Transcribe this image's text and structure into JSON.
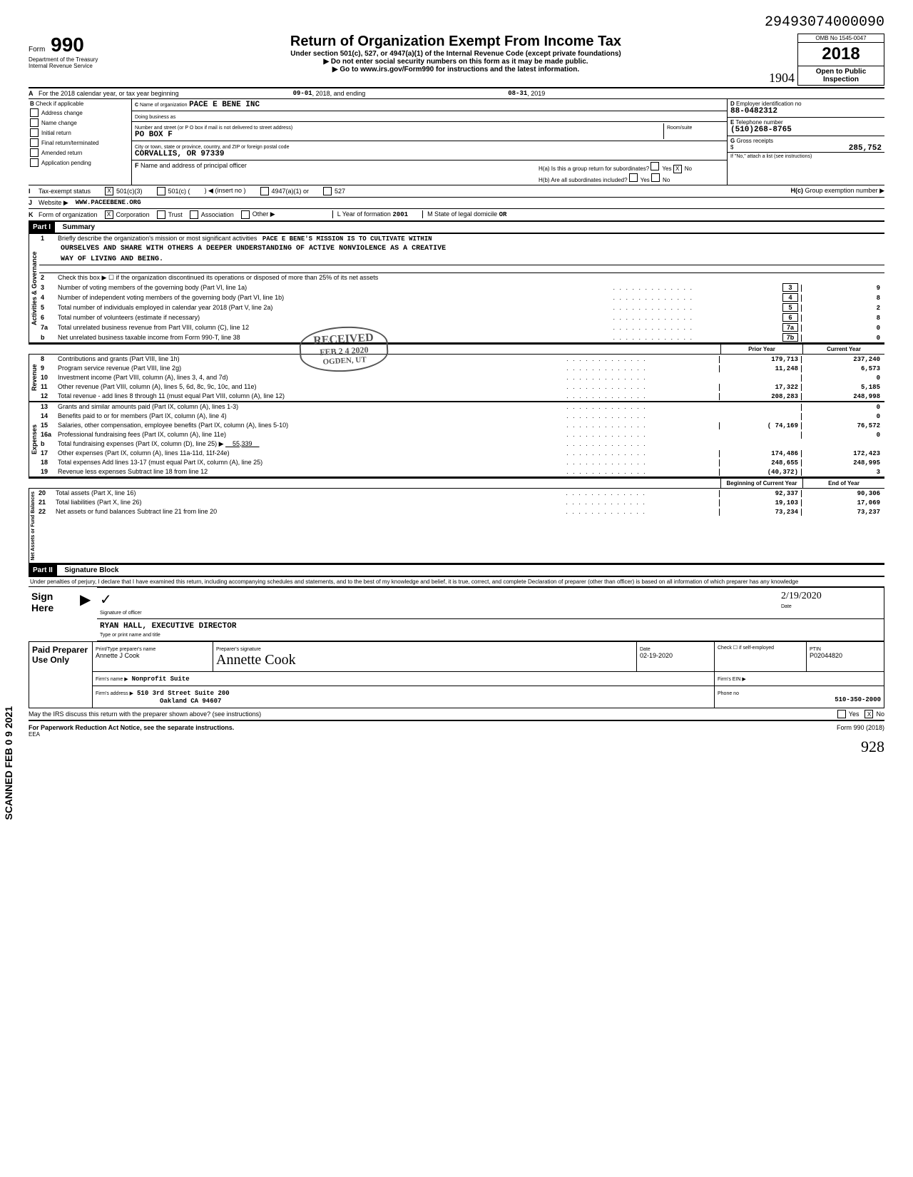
{
  "top_right_code": "29493074000090",
  "form_number": "990",
  "form_label": "Form",
  "omb": "OMB No 1545-0047",
  "year": "2018",
  "open_public": "Open to Public Inspection",
  "title": "Return of Organization Exempt From Income Tax",
  "subtitle1": "Under section 501(c), 527, or 4947(a)(1) of the Internal Revenue Code (except private foundations)",
  "subtitle2": "▶ Do not enter social security numbers on this form as it may be made public.",
  "subtitle3": "▶ Go to www.irs.gov/Form990 for instructions and the latest information.",
  "dept1": "Department of the Treasury",
  "dept2": "Internal Revenue Service",
  "initials": "1904",
  "row_a": {
    "label": "A",
    "text": "For the 2018 calendar year, or tax year beginning",
    "begin": "09-01",
    "mid": ", 2018, and ending",
    "end": "08-31",
    "end2": ", 2019"
  },
  "section_b": {
    "b_label": "B",
    "check_label": "Check if applicable",
    "checks": [
      "Address change",
      "Name change",
      "Initial return",
      "Final return/terminated",
      "Amended return",
      "Application pending"
    ],
    "c_label": "C",
    "name_label": "Name of organization",
    "name": "PACE E BENE INC",
    "dba_label": "Doing business as",
    "street_label": "Number and street (or P O box if mail is not delivered to street address)",
    "street": "PO BOX F",
    "room_label": "Room/suite",
    "city_label": "City or town, state or province, country, and ZIP or foreign postal code",
    "city": "CORVALLIS, OR 97339",
    "f_label": "F",
    "f_text": "Name and address of principal officer",
    "d_label": "D",
    "d_text": "Employer identification no",
    "ein": "88-0482312",
    "e_label": "E",
    "e_text": "Telephone number",
    "phone": "(510)268-8765",
    "g_label": "G",
    "g_text": "Gross receipts",
    "gross": "285,752",
    "h1a": "H(a) Is this a group return for subordinates?",
    "h1b": "H(b) Are all subordinates included?",
    "h_yes": "Yes",
    "h_no": "No",
    "h_note": "If \"No,\" attach a list (see instructions)",
    "hc": "H(c)",
    "hc_text": "Group exemption number ▶"
  },
  "row_i": {
    "lbl": "I",
    "text": "Tax-exempt status",
    "opt1": "501(c)(3)",
    "opt2": "501(c) (",
    "insert": ") ◀ (insert no )",
    "opt3": "4947(a)(1) or",
    "opt4": "527"
  },
  "row_j": {
    "lbl": "J",
    "text": "Website ▶",
    "val": "WWW.PACEEBENE.ORG"
  },
  "row_k": {
    "lbl": "K",
    "text": "Form of organization",
    "opts": [
      "Corporation",
      "Trust",
      "Association",
      "Other ▶"
    ],
    "l_text": "L Year of formation",
    "l_val": "2001",
    "m_text": "M State of legal domicile",
    "m_val": "OR"
  },
  "part1_label": "Part I",
  "part1_title": "Summary",
  "governance_label": "Activities & Governance",
  "revenue_label": "Revenue",
  "expenses_label": "Expenses",
  "netassets_label": "Net Assets or Fund Balances",
  "line1": {
    "num": "1",
    "desc": "Briefly describe the organization's mission or most significant activities",
    "val": "PACE E BENE'S MISSION IS TO CULTIVATE WITHIN"
  },
  "mission2": "OURSELVES AND SHARE WITH OTHERS A DEEPER UNDERSTANDING OF ACTIVE NONVIOLENCE AS A CREATIVE",
  "mission3": "WAY OF LIVING AND BEING.",
  "line2": {
    "num": "2",
    "desc": "Check this box ▶ ☐ if the organization discontinued its operations or disposed of more than 25% of its net assets"
  },
  "gov_lines": [
    {
      "num": "3",
      "desc": "Number of voting members of the governing body (Part VI, line 1a)",
      "box": "3",
      "val": "9"
    },
    {
      "num": "4",
      "desc": "Number of independent voting members of the governing body (Part VI, line 1b)",
      "box": "4",
      "val": "8"
    },
    {
      "num": "5",
      "desc": "Total number of individuals employed in calendar year 2018 (Part V, line 2a)",
      "box": "5",
      "val": "2"
    },
    {
      "num": "6",
      "desc": "Total number of volunteers (estimate if necessary)",
      "box": "6",
      "val": "8"
    },
    {
      "num": "7a",
      "desc": "Total unrelated business revenue from Part VIII, column (C), line 12",
      "box": "7a",
      "val": "0"
    },
    {
      "num": "b",
      "desc": "Net unrelated business taxable income from Form 990-T, line 38",
      "box": "7b",
      "val": "0"
    }
  ],
  "prior_year_hdr": "Prior Year",
  "current_year_hdr": "Current Year",
  "rev_lines": [
    {
      "num": "8",
      "desc": "Contributions and grants (Part VIII, line 1h)",
      "prior": "179,713",
      "curr": "237,240"
    },
    {
      "num": "9",
      "desc": "Program service revenue (Part VIII, line 2g)",
      "prior": "11,248",
      "curr": "6,573"
    },
    {
      "num": "10",
      "desc": "Investment income (Part VIII, column (A), lines 3, 4, and 7d)",
      "prior": "",
      "curr": "0"
    },
    {
      "num": "11",
      "desc": "Other revenue (Part VIII, column (A), lines 5, 6d, 8c, 9c, 10c, and 11e)",
      "prior": "17,322",
      "curr": "5,185"
    },
    {
      "num": "12",
      "desc": "Total revenue - add lines 8 through 11 (must equal Part VIII, column (A), line 12)",
      "prior": "208,283",
      "curr": "248,998"
    }
  ],
  "exp_lines": [
    {
      "num": "13",
      "desc": "Grants and similar amounts paid (Part IX, column (A), lines 1-3)",
      "prior": "",
      "curr": "0"
    },
    {
      "num": "14",
      "desc": "Benefits paid to or for members (Part IX, column (A), line 4)",
      "prior": "",
      "curr": "0"
    },
    {
      "num": "15",
      "desc": "Salaries, other compensation, employee benefits (Part IX, column (A), lines 5-10)",
      "prior": "( 74,169",
      "curr": "76,572"
    },
    {
      "num": "16a",
      "desc": "Professional fundraising fees (Part IX, column (A), line 11e)",
      "prior": "",
      "curr": "0"
    },
    {
      "num": "b",
      "desc": "Total fundraising expenses (Part IX, column (D), line 25) ▶",
      "inline": "55,339",
      "prior": "",
      "curr": ""
    },
    {
      "num": "17",
      "desc": "Other expenses (Part IX, column (A), lines 11a-11d, 11f-24e)",
      "prior": "174,486",
      "curr": "172,423"
    },
    {
      "num": "18",
      "desc": "Total expenses  Add lines 13-17 (must equal Part IX, column (A), line 25)",
      "prior": "248,655",
      "curr": "248,995"
    },
    {
      "num": "19",
      "desc": "Revenue less expenses  Subtract line 18 from line 12",
      "prior": "(40,372)",
      "curr": "3"
    }
  ],
  "boy_hdr": "Beginning of Current Year",
  "eoy_hdr": "End of Year",
  "net_lines": [
    {
      "num": "20",
      "desc": "Total assets (Part X, line 16)",
      "prior": "92,337",
      "curr": "90,306"
    },
    {
      "num": "21",
      "desc": "Total liabilities (Part X, line 26)",
      "prior": "19,103",
      "curr": "17,069"
    },
    {
      "num": "22",
      "desc": "Net assets or fund balances  Subtract line 21 from line 20",
      "prior": "73,234",
      "curr": "73,237"
    }
  ],
  "part2_label": "Part II",
  "part2_title": "Signature Block",
  "perjury": "Under penalties of perjury, I declare that I have examined this return, including accompanying schedules and statements, and to the best of my knowledge and belief, it is true, correct, and complete  Declaration of preparer (other than officer) is based on all information of which preparer has any knowledge",
  "sign_here": "Sign Here",
  "sig_officer_label": "Signature of officer",
  "sig_date_label": "Date",
  "sig_date": "2/19/2020",
  "officer_name": "RYAN HALL, EXECUTIVE DIRECTOR",
  "type_name_label": "Type or print name and title",
  "paid_prep": "Paid Preparer Use Only",
  "prep_name_label": "Print/Type preparer's name",
  "prep_name": "Annette J Cook",
  "prep_sig_label": "Preparer's signature",
  "prep_sig": "Annette Cook",
  "prep_date_label": "Date",
  "prep_date": "02-19-2020",
  "prep_check": "Check ☐ if self-employed",
  "ptin_label": "PTIN",
  "ptin": "P02044820",
  "firm_name_label": "Firm's name ▶",
  "firm_name": "Nonprofit Suite",
  "firm_ein_label": "Firm's EIN ▶",
  "firm_addr_label": "Firm's address ▶",
  "firm_addr": "510 3rd Street Suite 200",
  "firm_city": "Oakland CA 94607",
  "firm_phone_label": "Phone no",
  "firm_phone": "510-350-2000",
  "discuss": "May the IRS discuss this return with the preparer shown above? (see instructions)",
  "paperwork": "For Paperwork Reduction Act Notice, see the separate instructions.",
  "eea": "EEA",
  "form_footer": "Form 990 (2018)",
  "stamp1": "RECEIVED",
  "stamp2": "FEB 2 4 2020",
  "stamp3": "OGDEN, UT",
  "scanned": "SCANNED FEB 0 9 2021",
  "page_handwrite": "928"
}
